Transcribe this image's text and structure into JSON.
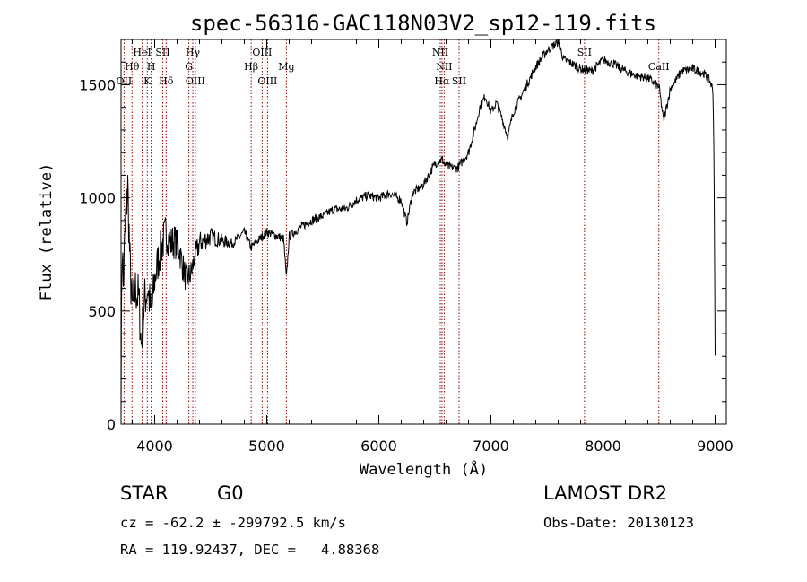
{
  "chart_data": {
    "type": "line",
    "title": "spec-56316-GAC118N03V2_sp12-119.fits",
    "xlabel": "Wavelength (Å)",
    "ylabel": "Flux (relative)",
    "xlim": [
      3700,
      9100
    ],
    "ylim": [
      0,
      1700
    ],
    "xticks": [
      4000,
      5000,
      6000,
      7000,
      8000,
      9000
    ],
    "yticks": [
      0,
      500,
      1000,
      1500
    ],
    "xtick_labels": [
      "4000",
      "5000",
      "6000",
      "7000",
      "8000",
      "9000"
    ],
    "ytick_labels": [
      "0",
      "500",
      "1000",
      "1500"
    ],
    "grid": false,
    "line_color": "#000000",
    "marker_color": "#8b0000",
    "spectrum_anchors": [
      [
        3700,
        150
      ],
      [
        3710,
        850
      ],
      [
        3720,
        600
      ],
      [
        3740,
        900
      ],
      [
        3760,
        1050
      ],
      [
        3780,
        700
      ],
      [
        3800,
        500
      ],
      [
        3830,
        600
      ],
      [
        3860,
        550
      ],
      [
        3880,
        350
      ],
      [
        3910,
        550
      ],
      [
        3940,
        600
      ],
      [
        3970,
        480
      ],
      [
        4000,
        640
      ],
      [
        4030,
        720
      ],
      [
        4060,
        780
      ],
      [
        4100,
        850
      ],
      [
        4140,
        800
      ],
      [
        4180,
        810
      ],
      [
        4220,
        770
      ],
      [
        4250,
        700
      ],
      [
        4280,
        640
      ],
      [
        4320,
        660
      ],
      [
        4360,
        740
      ],
      [
        4400,
        800
      ],
      [
        4500,
        830
      ],
      [
        4600,
        810
      ],
      [
        4700,
        800
      ],
      [
        4800,
        850
      ],
      [
        4860,
        780
      ],
      [
        4900,
        800
      ],
      [
        5000,
        850
      ],
      [
        5100,
        830
      ],
      [
        5150,
        820
      ],
      [
        5175,
        640
      ],
      [
        5200,
        830
      ],
      [
        5300,
        870
      ],
      [
        5400,
        900
      ],
      [
        5500,
        920
      ],
      [
        5600,
        950
      ],
      [
        5700,
        950
      ],
      [
        5800,
        990
      ],
      [
        5900,
        1010
      ],
      [
        6000,
        1000
      ],
      [
        6100,
        1020
      ],
      [
        6200,
        990
      ],
      [
        6250,
        890
      ],
      [
        6300,
        1020
      ],
      [
        6400,
        1060
      ],
      [
        6500,
        1150
      ],
      [
        6563,
        1170
      ],
      [
        6600,
        1140
      ],
      [
        6700,
        1130
      ],
      [
        6800,
        1200
      ],
      [
        6870,
        1330
      ],
      [
        6900,
        1400
      ],
      [
        6950,
        1450
      ],
      [
        7000,
        1380
      ],
      [
        7050,
        1420
      ],
      [
        7100,
        1350
      ],
      [
        7150,
        1270
      ],
      [
        7200,
        1380
      ],
      [
        7300,
        1480
      ],
      [
        7400,
        1580
      ],
      [
        7500,
        1650
      ],
      [
        7600,
        1690
      ],
      [
        7650,
        1610
      ],
      [
        7700,
        1600
      ],
      [
        7800,
        1570
      ],
      [
        7900,
        1560
      ],
      [
        8000,
        1610
      ],
      [
        8100,
        1590
      ],
      [
        8200,
        1560
      ],
      [
        8300,
        1540
      ],
      [
        8400,
        1530
      ],
      [
        8500,
        1490
      ],
      [
        8540,
        1340
      ],
      [
        8600,
        1480
      ],
      [
        8700,
        1560
      ],
      [
        8800,
        1570
      ],
      [
        8900,
        1550
      ],
      [
        8950,
        1520
      ],
      [
        8980,
        1480
      ],
      [
        8990,
        1200
      ],
      [
        9000,
        300
      ]
    ],
    "noise": {
      "seed": 7,
      "amplitude_blue": 130,
      "amplitude_red": 20,
      "step_angstrom": 4
    },
    "emission_lines": [
      {
        "label": "OII",
        "x": 3727,
        "row": 3
      },
      {
        "label": "Hθ",
        "x": 3798,
        "row": 2
      },
      {
        "label": "HeI",
        "x": 3889,
        "row": 1
      },
      {
        "label": "K",
        "x": 3934,
        "row": 3
      },
      {
        "label": "H",
        "x": 3969,
        "row": 2
      },
      {
        "label": "SII",
        "x": 4072,
        "row": 1
      },
      {
        "label": "Hδ",
        "x": 4102,
        "row": 3
      },
      {
        "label": "Hγ",
        "x": 4340,
        "row": 1
      },
      {
        "label": "G",
        "x": 4305,
        "row": 2
      },
      {
        "label": "OIII",
        "x": 4363,
        "row": 3
      },
      {
        "label": "Hβ",
        "x": 4861,
        "row": 2
      },
      {
        "label": "OIII",
        "x": 4959,
        "row": 1
      },
      {
        "label": "OIII",
        "x": 5007,
        "row": 3
      },
      {
        "label": "Mg",
        "x": 5175,
        "row": 2
      },
      {
        "label": "NII",
        "x": 6548,
        "row": 1
      },
      {
        "label": "NII",
        "x": 6583,
        "row": 2
      },
      {
        "label": "Hα",
        "x": 6563,
        "row": 3
      },
      {
        "label": "SII",
        "x": 6716,
        "row": 3
      },
      {
        "label": "SII",
        "x": 7835,
        "row": 1
      },
      {
        "label": "CaII",
        "x": 8498,
        "row": 2
      }
    ]
  },
  "info": {
    "object_class": "STAR",
    "subclass": "G0",
    "survey": "LAMOST DR2",
    "redshift_line": "cz = -62.2 ± -299792.5 km/s",
    "obs_date_line": "Obs-Date: 20130123",
    "coords_line": "RA = 119.92437, DEC =   4.88368"
  }
}
